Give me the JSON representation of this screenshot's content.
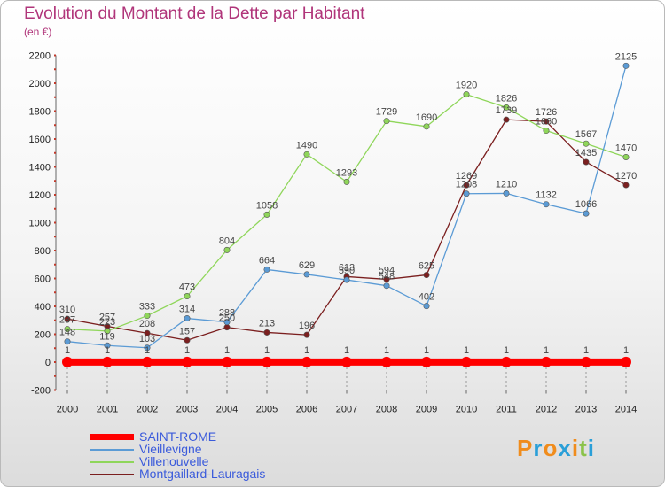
{
  "title": "Evolution du Montant de la Dette par Habitant",
  "subtitle": "(en €)",
  "logo": {
    "letters": [
      "P",
      "r",
      "o",
      "x",
      "i",
      "t",
      "i"
    ],
    "colors": [
      "#f08c1c",
      "#2a9fd8",
      "#f08c1c",
      "#2a9fd8",
      "#f08c1c",
      "#8bc34a",
      "#2a9fd8"
    ]
  },
  "chart_data": {
    "type": "line",
    "title": "Evolution du Montant de la Dette par Habitant",
    "subtitle": "(en €)",
    "xlabel": "",
    "ylabel": "",
    "x": [
      "2000",
      "2001",
      "2002",
      "2003",
      "2004",
      "2005",
      "2006",
      "2007",
      "2008",
      "2009",
      "2010",
      "2011",
      "2012",
      "2013",
      "2014"
    ],
    "ylim": [
      -200,
      2200
    ],
    "yticks": [
      "-200",
      "0",
      "200",
      "400",
      "600",
      "800",
      "1000",
      "1200",
      "1400",
      "1600",
      "1800",
      "2000",
      "2200"
    ],
    "grid": false,
    "legend": "bottom-left",
    "series": [
      {
        "name": "SAINT-ROME",
        "color": "#ff0000",
        "values": [
          1,
          1,
          1,
          1,
          1,
          1,
          1,
          1,
          1,
          1,
          1,
          1,
          1,
          1,
          1
        ],
        "labels": [
          "1",
          "1",
          "1",
          "1",
          "1",
          "1",
          "1",
          "1",
          "1",
          "1",
          "1",
          "1",
          "1",
          "1",
          "1"
        ]
      },
      {
        "name": "Vieillevigne",
        "color": "#5b9bd5",
        "values": [
          148,
          119,
          103,
          314,
          288,
          664,
          629,
          590,
          548,
          402,
          1208,
          1210,
          1132,
          1066,
          2125
        ],
        "labels": [
          "148",
          "119",
          "103",
          "314",
          "288",
          "664",
          "629",
          "590",
          "548",
          "402",
          "1208",
          "1210",
          "1132",
          "1066",
          "2125"
        ]
      },
      {
        "name": "Villenouvelle",
        "color": "#8fd65a",
        "values": [
          237,
          223,
          333,
          473,
          804,
          1058,
          1490,
          1293,
          1729,
          1690,
          1920,
          1826,
          1660,
          1567,
          1470
        ],
        "labels": [
          "237",
          "223",
          "333",
          "473",
          "804",
          "1058",
          "1490",
          "1293",
          "1729",
          "1690",
          "1920",
          "1826",
          "1660",
          "1567",
          "1470"
        ]
      },
      {
        "name": "Montgaillard-Lauragais",
        "color": "#7b1f1f",
        "values": [
          310,
          257,
          208,
          157,
          250,
          213,
          196,
          613,
          594,
          625,
          1269,
          1739,
          1726,
          1435,
          1270
        ],
        "labels": [
          "310",
          "257",
          "208",
          "157",
          "250",
          "213",
          "196",
          "613",
          "594",
          "625",
          "1269",
          "1739",
          "1726",
          "1435",
          "1270"
        ]
      }
    ]
  }
}
